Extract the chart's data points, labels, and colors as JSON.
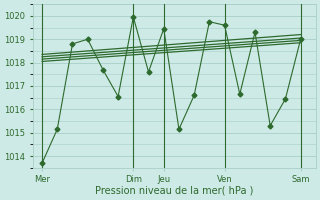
{
  "background_color": "#ceeae6",
  "grid_color": "#a8cfc9",
  "line_color": "#2d6a2d",
  "text_color": "#2d6a2d",
  "xlabel": "Pression niveau de la mer( hPa )",
  "ylim": [
    1013.5,
    1020.5
  ],
  "yticks": [
    1014,
    1015,
    1016,
    1017,
    1018,
    1019,
    1020
  ],
  "x_day_labels": [
    "Mer",
    "",
    "Dim",
    "Jeu",
    "",
    "Ven",
    "",
    "Sam"
  ],
  "x_day_label_map": {
    "0.0": "Mer",
    "3.0": "Dim",
    "4.0": "Jeu",
    "6.0": "Ven",
    "8.5": "Sam"
  },
  "vline_positions": [
    0.0,
    3.0,
    4.0,
    6.0,
    8.5
  ],
  "series_main": {
    "x": [
      0,
      0.5,
      1.0,
      1.5,
      2.0,
      2.5,
      3.0,
      3.5,
      4.0,
      4.5,
      5.0,
      5.5,
      6.0,
      6.5,
      7.0,
      7.5,
      8.0,
      8.5
    ],
    "y": [
      1013.7,
      1015.15,
      1018.8,
      1019.0,
      1017.7,
      1016.55,
      1019.95,
      1017.6,
      1019.45,
      1015.15,
      1016.6,
      1019.75,
      1019.6,
      1016.65,
      1019.3,
      1015.3,
      1016.45,
      1019.0
    ]
  },
  "trend_lines": [
    {
      "x0": 0,
      "x1": 8.5,
      "y0": 1018.05,
      "y1": 1018.85
    },
    {
      "x0": 0,
      "x1": 8.5,
      "y0": 1018.15,
      "y1": 1018.95
    },
    {
      "x0": 0,
      "x1": 8.5,
      "y0": 1018.25,
      "y1": 1019.05
    },
    {
      "x0": 0,
      "x1": 8.5,
      "y0": 1018.35,
      "y1": 1019.2
    }
  ],
  "xlim": [
    -0.3,
    9.0
  ],
  "figsize": [
    3.2,
    2.0
  ],
  "dpi": 100,
  "xlabel_fontsize": 7,
  "ytick_fontsize": 6,
  "xtick_fontsize": 6
}
